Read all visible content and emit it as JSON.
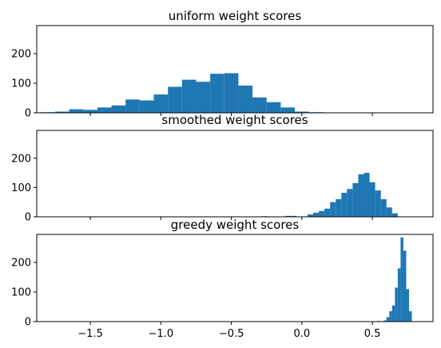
{
  "chart_data": [
    {
      "type": "bar",
      "title": "uniform weight scores",
      "xlim": [
        -1.88,
        0.93
      ],
      "ylim": [
        0,
        295
      ],
      "yticks": [
        0,
        100,
        200
      ],
      "show_xtick_labels": false,
      "color": "#1f77b4",
      "bin_width": 0.1,
      "bins": [
        {
          "x": -1.8,
          "y": 2
        },
        {
          "x": -1.7,
          "y": 4
        },
        {
          "x": -1.6,
          "y": 12
        },
        {
          "x": -1.5,
          "y": 10
        },
        {
          "x": -1.4,
          "y": 18
        },
        {
          "x": -1.3,
          "y": 25
        },
        {
          "x": -1.2,
          "y": 45
        },
        {
          "x": -1.1,
          "y": 42
        },
        {
          "x": -1.0,
          "y": 62
        },
        {
          "x": -0.9,
          "y": 88
        },
        {
          "x": -0.8,
          "y": 112
        },
        {
          "x": -0.7,
          "y": 105
        },
        {
          "x": -0.6,
          "y": 132
        },
        {
          "x": -0.5,
          "y": 134
        },
        {
          "x": -0.4,
          "y": 92
        },
        {
          "x": -0.3,
          "y": 52
        },
        {
          "x": -0.2,
          "y": 36
        },
        {
          "x": -0.1,
          "y": 18
        },
        {
          "x": 0.0,
          "y": 4
        },
        {
          "x": 0.1,
          "y": 2
        }
      ]
    },
    {
      "type": "bar",
      "title": "smoothed weight scores",
      "xlim": [
        -1.88,
        0.93
      ],
      "ylim": [
        0,
        295
      ],
      "yticks": [
        0,
        100,
        200
      ],
      "show_xtick_labels": false,
      "color": "#1f77b4",
      "bin_width": 0.04,
      "bins": [
        {
          "x": -0.26,
          "y": 2
        },
        {
          "x": -0.1,
          "y": 3
        },
        {
          "x": -0.06,
          "y": 3
        },
        {
          "x": 0.06,
          "y": 8
        },
        {
          "x": 0.1,
          "y": 14
        },
        {
          "x": 0.14,
          "y": 20
        },
        {
          "x": 0.18,
          "y": 28
        },
        {
          "x": 0.22,
          "y": 50
        },
        {
          "x": 0.26,
          "y": 60
        },
        {
          "x": 0.3,
          "y": 82
        },
        {
          "x": 0.34,
          "y": 95
        },
        {
          "x": 0.38,
          "y": 115
        },
        {
          "x": 0.42,
          "y": 145
        },
        {
          "x": 0.46,
          "y": 150
        },
        {
          "x": 0.5,
          "y": 118
        },
        {
          "x": 0.54,
          "y": 90
        },
        {
          "x": 0.58,
          "y": 60
        },
        {
          "x": 0.62,
          "y": 32
        },
        {
          "x": 0.66,
          "y": 12
        }
      ]
    },
    {
      "type": "bar",
      "title": "greedy weight scores",
      "xlim": [
        -1.88,
        0.93
      ],
      "ylim": [
        0,
        295
      ],
      "yticks": [
        0,
        100,
        200
      ],
      "show_xtick_labels": true,
      "xticks": [
        -1.5,
        -1.0,
        -0.5,
        0.0,
        0.5
      ],
      "xtick_labels": [
        "−1.5",
        "−1.0",
        "−0.5",
        "0.0",
        "0.5"
      ],
      "color": "#1f77b4",
      "bin_width": 0.02,
      "bins": [
        {
          "x": 0.45,
          "y": 1
        },
        {
          "x": 0.55,
          "y": 2
        },
        {
          "x": 0.59,
          "y": 4
        },
        {
          "x": 0.61,
          "y": 15
        },
        {
          "x": 0.63,
          "y": 35
        },
        {
          "x": 0.65,
          "y": 55
        },
        {
          "x": 0.67,
          "y": 115
        },
        {
          "x": 0.69,
          "y": 180
        },
        {
          "x": 0.71,
          "y": 285
        },
        {
          "x": 0.73,
          "y": 240
        },
        {
          "x": 0.75,
          "y": 110
        },
        {
          "x": 0.77,
          "y": 35
        }
      ]
    }
  ]
}
